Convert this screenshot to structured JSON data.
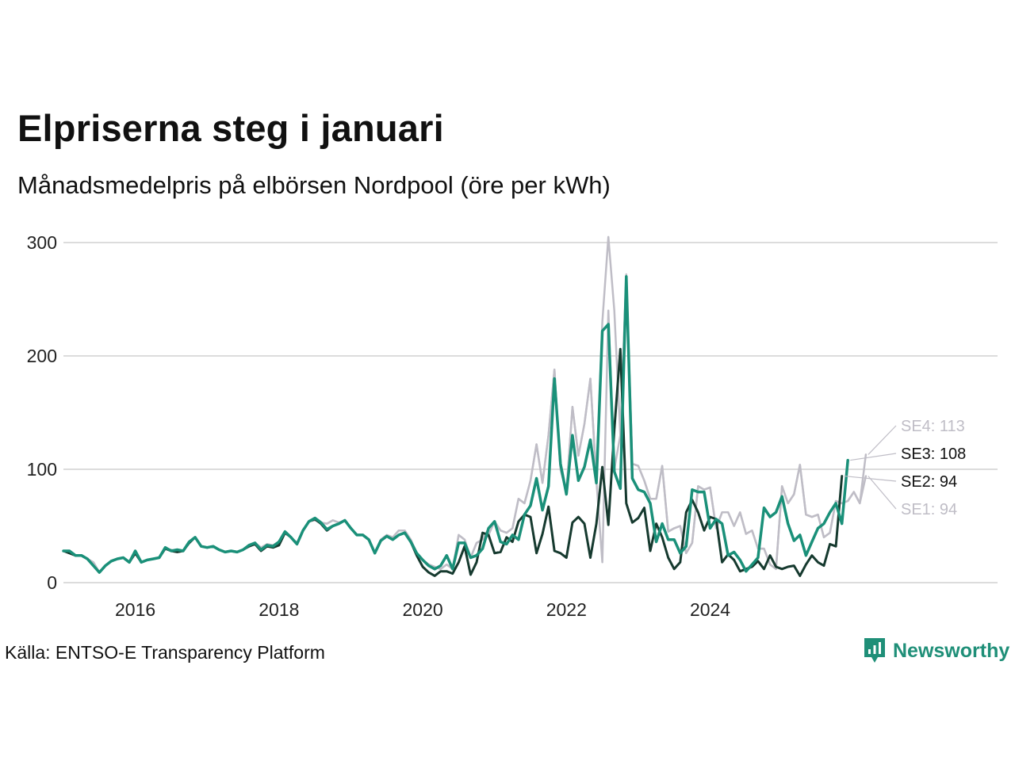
{
  "title": "Elpriserna steg i januari",
  "subtitle": "Månadsmedelpris på elbörsen Nordpool (öre per kWh)",
  "source": "Källa: ENTSO-E Transparency Platform",
  "brand": "Newsworthy",
  "colors": {
    "SE1": "#bfbdc6",
    "SE2": "#163a2f",
    "SE3": "#1a9079",
    "SE4": "#bfbdc6",
    "grid": "#dcdcdc",
    "brand": "#1f8f78"
  },
  "chart_data": {
    "type": "line",
    "title": "Elpriserna steg i januari",
    "subtitle": "Månadsmedelpris på elbörsen Nordpool (öre per kWh)",
    "xlabel": "",
    "ylabel": "öre per kWh",
    "x_start": "2015-01",
    "xlim": [
      2015.0,
      2028.0
    ],
    "ylim": [
      0,
      310
    ],
    "yticks": [
      0,
      100,
      200,
      300
    ],
    "xticks": [
      {
        "value": 2016,
        "label": "2016"
      },
      {
        "value": 2018,
        "label": "2018"
      },
      {
        "value": 2020,
        "label": "2020"
      },
      {
        "value": 2022,
        "label": "2022"
      },
      {
        "value": 2024,
        "label": "2024"
      }
    ],
    "series": [
      {
        "name": "SE1",
        "end_label": "SE1: 94",
        "color": "#bfbdc6",
        "width": 2.5,
        "values": [
          28,
          27,
          24,
          24,
          21,
          18,
          9,
          15,
          19,
          21,
          22,
          18,
          26,
          18,
          20,
          21,
          22,
          30,
          29,
          27,
          28,
          36,
          40,
          32,
          31,
          32,
          29,
          27,
          28,
          27,
          29,
          33,
          35,
          31,
          34,
          33,
          36,
          44,
          40,
          35,
          46,
          54,
          55,
          53,
          52,
          55,
          53,
          55,
          48,
          42,
          42,
          38,
          26,
          38,
          42,
          40,
          46,
          46,
          38,
          26,
          20,
          16,
          14,
          12,
          16,
          12,
          42,
          38,
          22,
          35,
          38,
          42,
          54,
          46,
          44,
          48,
          74,
          70,
          90,
          122,
          88,
          130,
          188,
          100,
          80,
          155,
          112,
          140,
          180,
          90,
          18,
          240,
          100,
          130,
          270,
          105,
          103,
          90,
          74,
          74,
          103,
          45,
          48,
          50,
          26,
          35,
          85,
          82,
          84,
          48,
          62,
          62,
          50,
          62,
          43,
          46,
          30,
          30,
          16,
          12,
          85,
          70,
          78,
          104,
          60,
          58,
          60,
          40,
          44,
          72,
          70,
          72,
          80,
          70,
          94
        ]
      },
      {
        "name": "SE4",
        "end_label": "SE4: 113",
        "color": "#bfbdc6",
        "width": 2.5,
        "values": [
          28,
          27,
          24,
          24,
          21,
          18,
          9,
          15,
          19,
          21,
          22,
          18,
          26,
          18,
          20,
          21,
          22,
          30,
          29,
          27,
          28,
          36,
          40,
          32,
          31,
          32,
          29,
          27,
          28,
          27,
          29,
          33,
          35,
          31,
          34,
          33,
          36,
          44,
          40,
          35,
          46,
          54,
          57,
          53,
          52,
          55,
          53,
          55,
          48,
          42,
          42,
          38,
          26,
          38,
          42,
          40,
          46,
          46,
          38,
          26,
          20,
          16,
          14,
          12,
          16,
          12,
          42,
          38,
          22,
          35,
          38,
          48,
          54,
          46,
          44,
          48,
          74,
          70,
          90,
          122,
          88,
          130,
          188,
          100,
          80,
          155,
          112,
          140,
          180,
          90,
          230,
          305,
          240,
          130,
          272,
          105,
          103,
          90,
          74,
          74,
          103,
          45,
          48,
          50,
          26,
          35,
          85,
          82,
          84,
          48,
          62,
          62,
          50,
          62,
          43,
          46,
          30,
          30,
          16,
          12,
          85,
          70,
          78,
          104,
          60,
          58,
          60,
          40,
          44,
          72,
          70,
          72,
          80,
          70,
          113
        ]
      },
      {
        "name": "SE2",
        "end_label": "SE2: 94",
        "color": "#163a2f",
        "width": 3,
        "values": [
          28,
          26,
          24,
          24,
          21,
          15,
          9,
          15,
          19,
          21,
          22,
          18,
          26,
          18,
          20,
          21,
          22,
          30,
          28,
          27,
          28,
          35,
          40,
          32,
          31,
          32,
          29,
          27,
          28,
          27,
          29,
          32,
          34,
          28,
          32,
          31,
          33,
          44,
          40,
          34,
          46,
          54,
          56,
          52,
          46,
          50,
          52,
          55,
          48,
          42,
          42,
          38,
          26,
          37,
          41,
          38,
          42,
          44,
          36,
          24,
          14,
          9,
          6,
          10,
          10,
          8,
          18,
          32,
          7,
          18,
          44,
          42,
          26,
          27,
          40,
          36,
          54,
          60,
          58,
          26,
          43,
          67,
          28,
          26,
          22,
          53,
          58,
          52,
          22,
          52,
          102,
          51,
          135,
          206,
          70,
          53,
          57,
          66,
          28,
          52,
          40,
          22,
          12,
          18,
          62,
          73,
          62,
          46,
          58,
          56,
          18,
          25,
          20,
          10,
          12,
          14,
          19,
          12,
          24,
          14,
          12,
          14,
          15,
          6,
          16,
          24,
          18,
          15,
          34,
          32,
          94
        ]
      },
      {
        "name": "SE3",
        "end_label": "SE3: 108",
        "color": "#1a9079",
        "width": 3.5,
        "values": [
          28,
          28,
          24,
          24,
          21,
          15,
          9,
          15,
          19,
          21,
          22,
          18,
          28,
          18,
          20,
          21,
          22,
          31,
          28,
          29,
          28,
          36,
          40,
          32,
          31,
          32,
          29,
          27,
          28,
          27,
          29,
          33,
          35,
          29,
          33,
          32,
          36,
          45,
          40,
          34,
          46,
          54,
          57,
          53,
          47,
          50,
          52,
          55,
          48,
          42,
          42,
          38,
          26,
          37,
          41,
          38,
          42,
          44,
          36,
          26,
          20,
          15,
          12,
          15,
          24,
          12,
          35,
          35,
          22,
          24,
          30,
          48,
          54,
          36,
          34,
          42,
          38,
          60,
          68,
          92,
          64,
          85,
          180,
          105,
          78,
          130,
          90,
          102,
          126,
          88,
          222,
          228,
          98,
          83,
          270,
          92,
          82,
          80,
          70,
          36,
          52,
          38,
          38,
          26,
          32,
          82,
          80,
          80,
          48,
          56,
          52,
          24,
          27,
          20,
          10,
          16,
          22,
          66,
          58,
          62,
          76,
          52,
          37,
          42,
          24,
          36,
          48,
          52,
          62,
          70,
          52,
          108
        ]
      }
    ]
  }
}
